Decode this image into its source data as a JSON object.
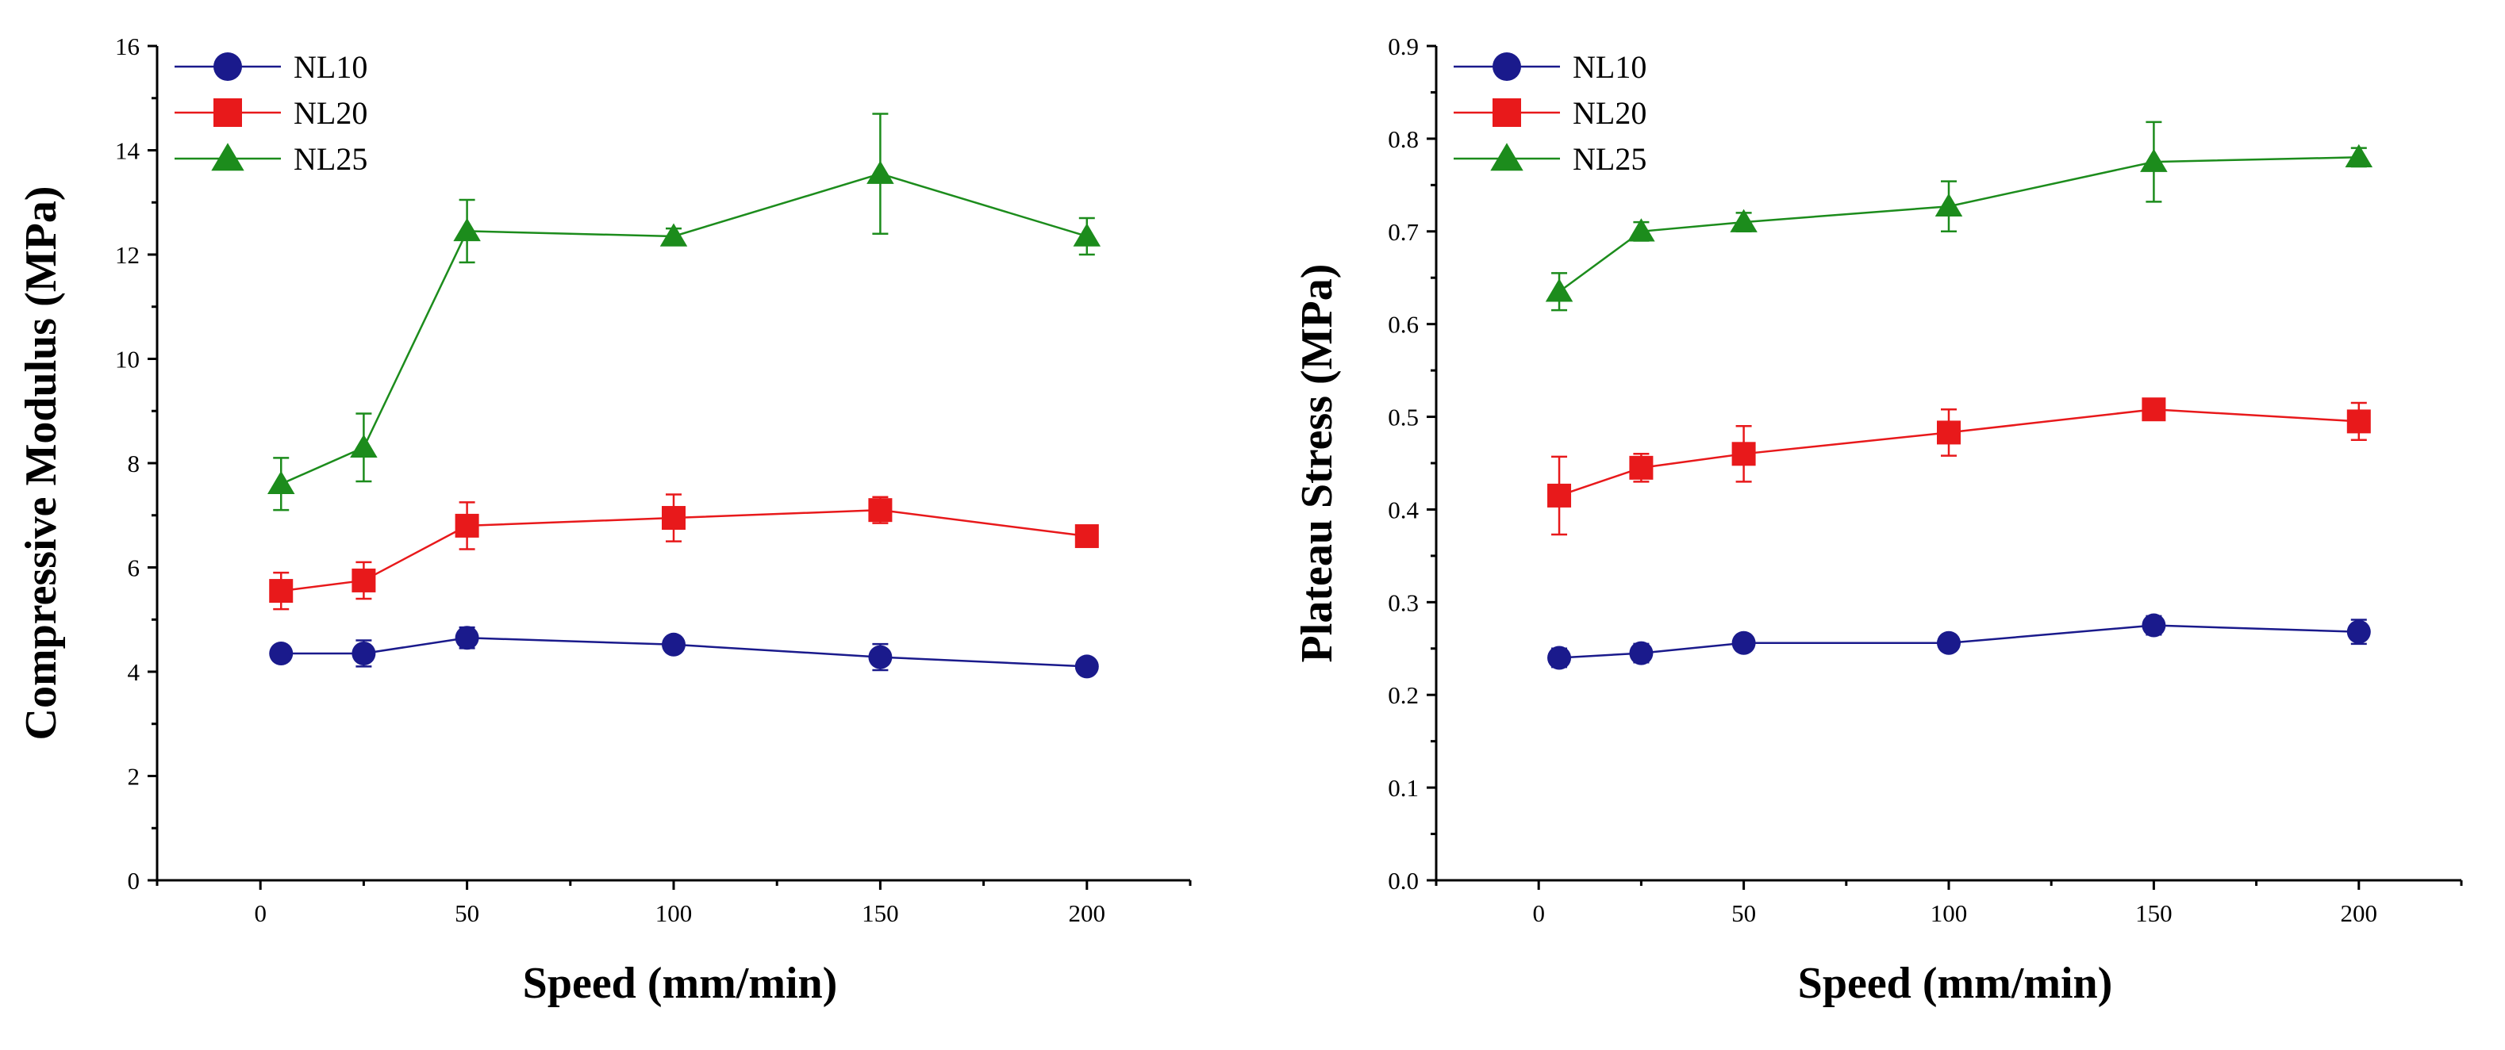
{
  "chart_data": [
    {
      "type": "line",
      "title": "",
      "xlabel": "Speed (mm/min)",
      "ylabel": "Compressive Modulus (MPa)",
      "xlim": [
        -25,
        225
      ],
      "ylim": [
        0,
        16
      ],
      "x_ticks": [
        "0",
        "50",
        "100",
        "150",
        "200"
      ],
      "y_ticks": [
        "0",
        "2",
        "4",
        "6",
        "8",
        "10",
        "12",
        "14",
        "16"
      ],
      "legend_position": "top-left",
      "x": [
        5,
        25,
        50,
        100,
        150,
        200
      ],
      "series": [
        {
          "name": "NL10",
          "marker": "circle",
          "color": "#1a1a8c",
          "values": [
            4.35,
            4.35,
            4.65,
            4.52,
            4.28,
            4.1
          ],
          "errors": [
            0.15,
            0.25,
            0.2,
            0.1,
            0.25,
            0.1
          ]
        },
        {
          "name": "NL20",
          "marker": "square",
          "color": "#e8191b",
          "values": [
            5.55,
            5.75,
            6.8,
            6.95,
            7.1,
            6.6
          ],
          "errors": [
            0.35,
            0.35,
            0.45,
            0.45,
            0.25,
            0.08
          ]
        },
        {
          "name": "NL25",
          "marker": "triangle",
          "color": "#1c8c1c",
          "values": [
            7.6,
            8.3,
            12.45,
            12.35,
            13.55,
            12.35
          ],
          "errors": [
            0.5,
            0.65,
            0.6,
            0.15,
            1.15,
            0.35
          ]
        }
      ]
    },
    {
      "type": "line",
      "title": "",
      "xlabel": "Speed (mm/min)",
      "ylabel": "Plateau Stress (MPa)",
      "xlim": [
        -25,
        225
      ],
      "ylim": [
        0,
        0.9
      ],
      "x_ticks": [
        "0",
        "50",
        "100",
        "150",
        "200"
      ],
      "y_ticks": [
        "0.0",
        "0.1",
        "0.2",
        "0.3",
        "0.4",
        "0.5",
        "0.6",
        "0.7",
        "0.8",
        "0.9"
      ],
      "legend_position": "top-left",
      "x": [
        5,
        25,
        50,
        100,
        150,
        200
      ],
      "series": [
        {
          "name": "NL10",
          "marker": "circle",
          "color": "#1a1a8c",
          "values": [
            0.24,
            0.245,
            0.256,
            0.256,
            0.275,
            0.268
          ],
          "errors": [
            0.01,
            0.01,
            0.006,
            0.006,
            0.01,
            0.013
          ]
        },
        {
          "name": "NL20",
          "marker": "square",
          "color": "#e8191b",
          "values": [
            0.415,
            0.445,
            0.46,
            0.483,
            0.508,
            0.495
          ],
          "errors": [
            0.042,
            0.015,
            0.03,
            0.025,
            0.008,
            0.02
          ]
        },
        {
          "name": "NL25",
          "marker": "triangle",
          "color": "#1c8c1c",
          "values": [
            0.635,
            0.7,
            0.71,
            0.727,
            0.775,
            0.78
          ],
          "errors": [
            0.02,
            0.01,
            0.01,
            0.027,
            0.043,
            0.01
          ]
        }
      ]
    }
  ]
}
